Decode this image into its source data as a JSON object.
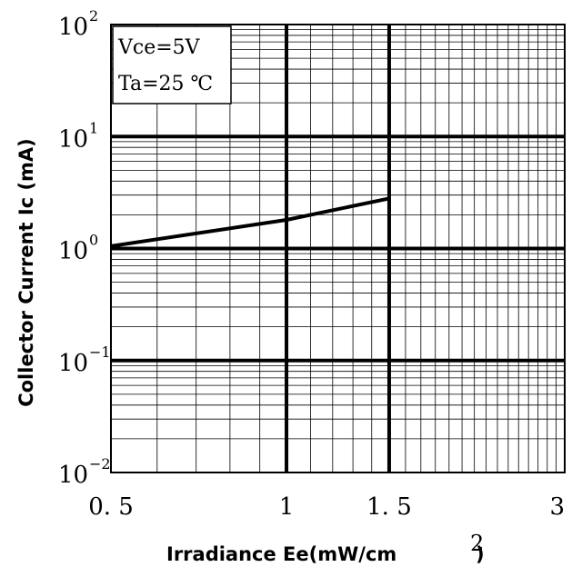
{
  "chart_data": {
    "type": "line",
    "x_scale": "log",
    "y_scale": "log",
    "xlim": [
      0.5,
      3
    ],
    "ylim": [
      0.01,
      100
    ],
    "x_ticks": [
      {
        "value": 0.5,
        "label": "0. 5"
      },
      {
        "value": 1,
        "label": "1"
      },
      {
        "value": 1.5,
        "label": "1. 5"
      },
      {
        "value": 3,
        "label": "3"
      }
    ],
    "y_ticks": [
      {
        "value": 100,
        "base": "10",
        "exp": "2"
      },
      {
        "value": 10,
        "base": "10",
        "exp": "1"
      },
      {
        "value": 1,
        "base": "10",
        "exp": "0"
      },
      {
        "value": 0.1,
        "base": "10",
        "exp": "−1"
      },
      {
        "value": 0.01,
        "base": "10",
        "exp": "−2"
      }
    ],
    "xlabel": "Irradiance Ee(mW/cm",
    "xlabel_superscript": "2",
    "xlabel_close": ")",
    "ylabel": "Collector Current Ic (mA)",
    "grid": true,
    "series": [
      {
        "x": [
          0.5,
          1.0,
          1.5
        ],
        "y": [
          1.05,
          1.8,
          2.8
        ]
      }
    ],
    "conditions": [
      "Vce=5V",
      "Ta=25 ℃"
    ]
  }
}
